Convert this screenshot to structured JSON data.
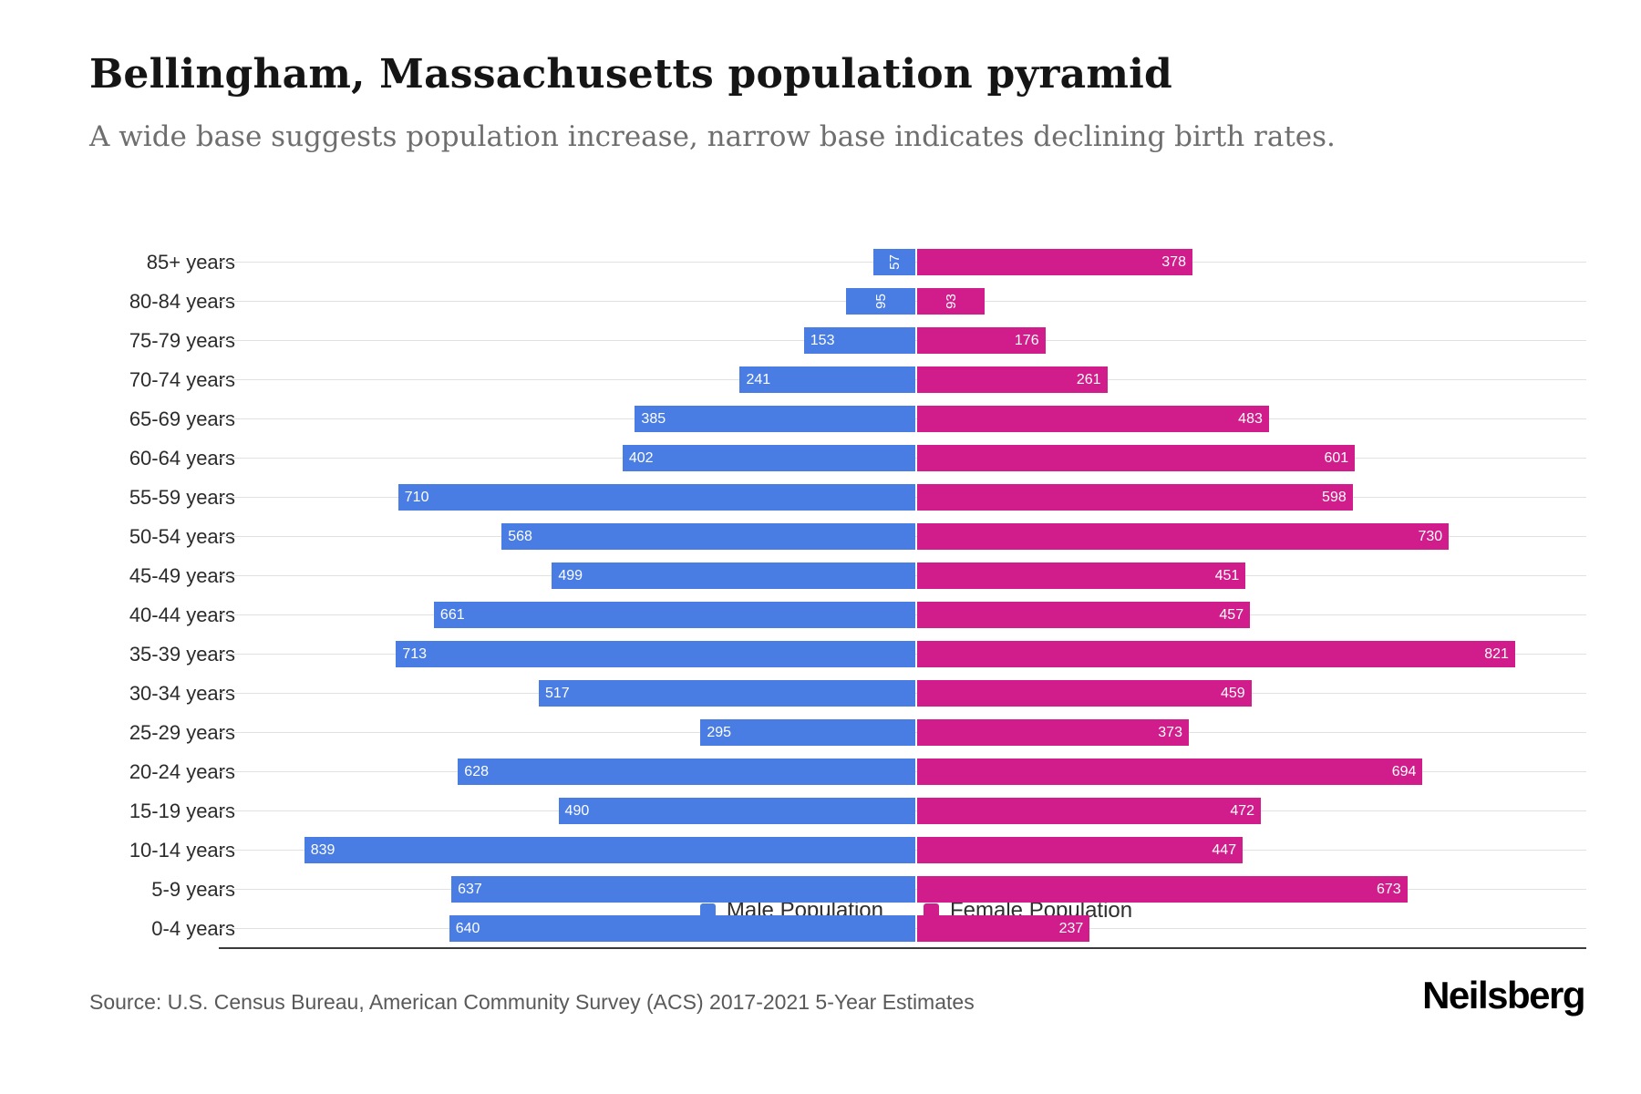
{
  "header": {
    "title": "Bellingham, Massachusetts population pyramid",
    "subtitle": "A wide base suggests population increase, narrow base indicates declining birth rates."
  },
  "chart_data": {
    "type": "bar",
    "variant": "population-pyramid",
    "categories": [
      "85+ years",
      "80-84 years",
      "75-79 years",
      "70-74 years",
      "65-69 years",
      "60-64 years",
      "55-59 years",
      "50-54 years",
      "45-49 years",
      "40-44 years",
      "35-39 years",
      "30-34 years",
      "25-29 years",
      "20-24 years",
      "15-19 years",
      "10-14 years",
      "5-9 years",
      "0-4 years"
    ],
    "series": [
      {
        "name": "Male Population",
        "color": "#4a7de3",
        "values": [
          57,
          95,
          153,
          241,
          385,
          402,
          710,
          568,
          499,
          661,
          713,
          517,
          295,
          628,
          490,
          839,
          637,
          640
        ]
      },
      {
        "name": "Female Population",
        "color": "#d01d8b",
        "values": [
          378,
          93,
          176,
          261,
          483,
          601,
          598,
          730,
          451,
          457,
          821,
          459,
          373,
          694,
          472,
          447,
          673,
          237
        ]
      }
    ],
    "axis_max": 920,
    "grid": true,
    "legend_position": "bottom",
    "value_labels": "inside-white",
    "rotate_label_below": 100
  },
  "legend": {
    "male_label": "Male Population",
    "female_label": "Female Population"
  },
  "footer": {
    "source": "Source: U.S. Census Bureau, American Community Survey (ACS) 2017-2021 5-Year Estimates",
    "logo": "Neilsberg"
  }
}
